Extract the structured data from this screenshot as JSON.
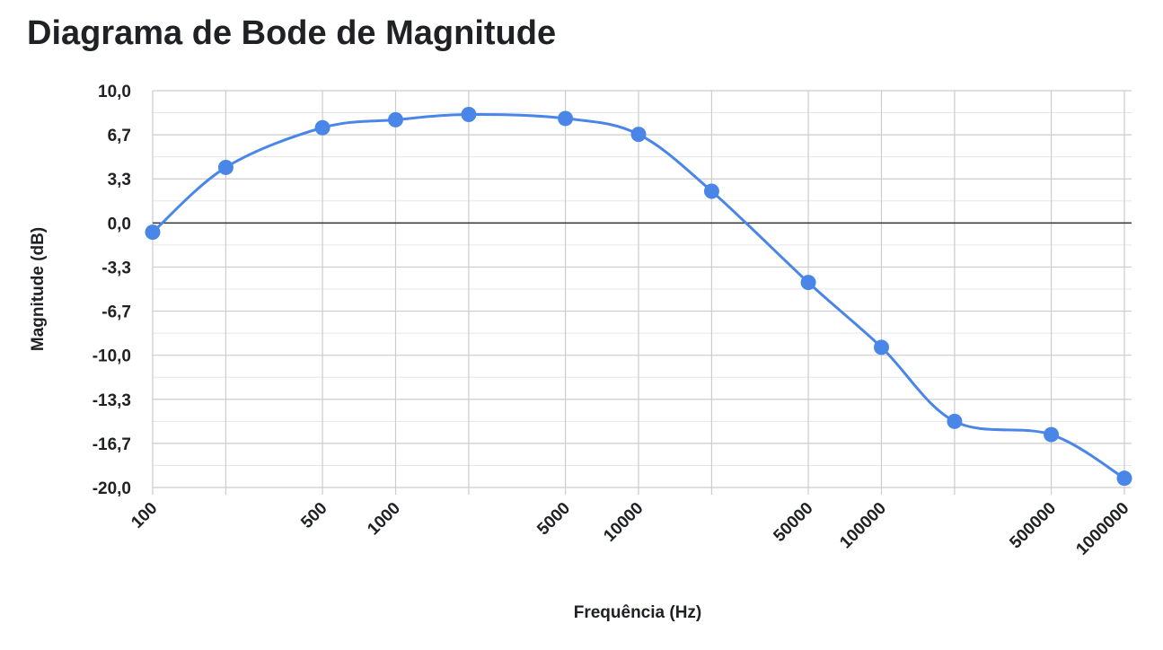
{
  "chart_data": {
    "type": "line",
    "title": "Diagrama de Bode de Magnitude",
    "xlabel": "Frequência (Hz)",
    "ylabel": "Magnitude (dB)",
    "x_scale": "log",
    "x_tick_labels": [
      "100",
      "500",
      "1000",
      "5000",
      "10000",
      "50000",
      "100000",
      "500000",
      "1000000"
    ],
    "y_tick_labels": [
      "10,0",
      "6,7",
      "3,3",
      "0,0",
      "-3,3",
      "-6,7",
      "-10,0",
      "-13,3",
      "-16,7",
      "-20,0"
    ],
    "ylim": [
      -20,
      10
    ],
    "grid": true,
    "legend": "none",
    "series": [
      {
        "color": "#4a86e8",
        "x": [
          100,
          200,
          500,
          1000,
          2000,
          5000,
          10000,
          20000,
          50000,
          100000,
          200000,
          500000,
          1000000
        ],
        "values": [
          -0.7,
          4.2,
          7.2,
          7.8,
          8.2,
          7.9,
          6.7,
          2.4,
          -4.5,
          -9.4,
          -15.0,
          -16.0,
          -19.3
        ]
      }
    ]
  }
}
